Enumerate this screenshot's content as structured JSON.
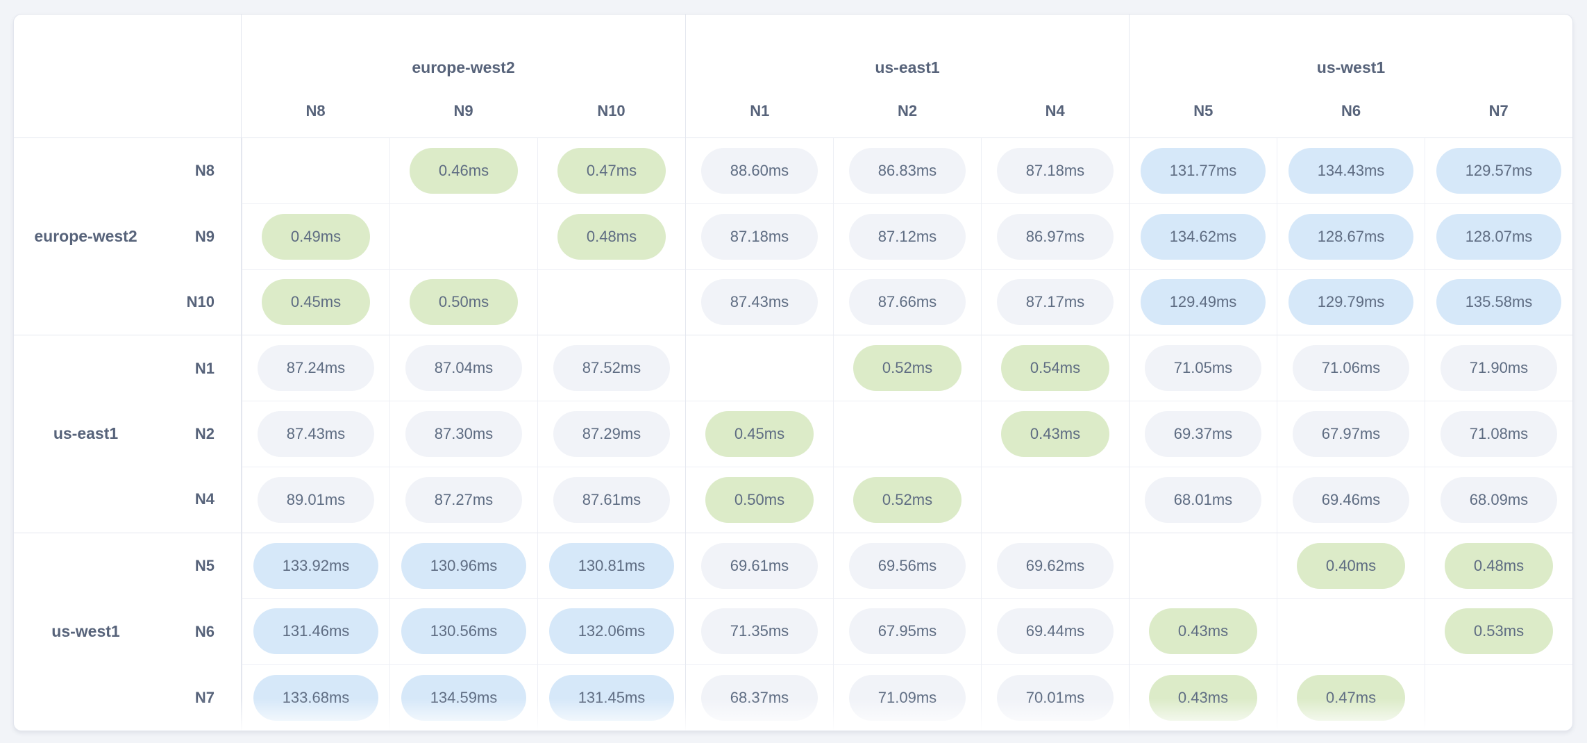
{
  "chart_data": {
    "type": "heatmap",
    "description": "inter-node network latency matrix",
    "regions": [
      {
        "name": "europe-west2",
        "nodes": [
          "N8",
          "N9",
          "N10"
        ]
      },
      {
        "name": "us-east1",
        "nodes": [
          "N1",
          "N2",
          "N4"
        ]
      },
      {
        "name": "us-west1",
        "nodes": [
          "N5",
          "N6",
          "N7"
        ]
      }
    ],
    "rows": [
      "N8",
      "N9",
      "N10",
      "N1",
      "N2",
      "N4",
      "N5",
      "N6",
      "N7"
    ],
    "columns": [
      "N8",
      "N9",
      "N10",
      "N1",
      "N2",
      "N4",
      "N5",
      "N6",
      "N7"
    ],
    "values": [
      [
        null,
        0.46,
        0.47,
        88.6,
        86.83,
        87.18,
        131.77,
        134.43,
        129.57
      ],
      [
        0.49,
        null,
        0.48,
        87.18,
        87.12,
        86.97,
        134.62,
        128.67,
        128.07
      ],
      [
        0.45,
        0.5,
        null,
        87.43,
        87.66,
        87.17,
        129.49,
        129.79,
        135.58
      ],
      [
        87.24,
        87.04,
        87.52,
        null,
        0.52,
        0.54,
        71.05,
        71.06,
        71.9
      ],
      [
        87.43,
        87.3,
        87.29,
        0.45,
        null,
        0.43,
        69.37,
        67.97,
        71.08
      ],
      [
        89.01,
        87.27,
        87.61,
        0.5,
        0.52,
        null,
        68.01,
        69.46,
        68.09
      ],
      [
        133.92,
        130.96,
        130.81,
        69.61,
        69.56,
        69.62,
        null,
        0.4,
        0.48
      ],
      [
        131.46,
        130.56,
        132.06,
        71.35,
        67.95,
        69.44,
        0.43,
        null,
        0.53
      ],
      [
        133.68,
        134.59,
        131.45,
        68.37,
        71.09,
        70.01,
        0.43,
        0.47,
        null
      ]
    ],
    "format": {
      "decimals": 2,
      "unit": "ms"
    },
    "levels": {
      "low_max": 1,
      "high_min": 100
    },
    "colors": {
      "low_bg": "#dcebc8",
      "mid_bg": "#f1f3f8",
      "high_bg": "#d6e8f9",
      "value_text": "#5e6c82",
      "label_text": "#57637a"
    }
  }
}
